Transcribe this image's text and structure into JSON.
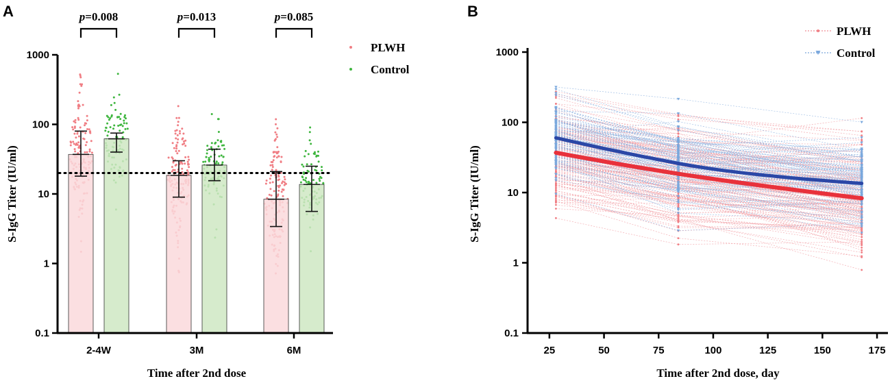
{
  "chart_data": [
    {
      "panel": "A",
      "type": "bar",
      "xlabel": "Time after 2nd dose",
      "ylabel": "S-IgG Titer (IU/ml)",
      "yscale": "log",
      "ylim": [
        0.1,
        1000
      ],
      "yticks": [
        "0.1",
        "1",
        "10",
        "100",
        "1000"
      ],
      "categories": [
        "2-4W",
        "3M",
        "6M"
      ],
      "reference_line": 20,
      "series": [
        {
          "name": "PLWH",
          "color": "#f07e84",
          "fill": "#fad9dc",
          "values": [
            37,
            18.5,
            8.4
          ],
          "error_low": [
            18,
            9,
            3.4
          ],
          "error_high": [
            80,
            30,
            21
          ]
        },
        {
          "name": "Control",
          "color": "#3fb63f",
          "fill": "#cfe8c3",
          "values": [
            62,
            26,
            13.7
          ],
          "error_low": [
            40,
            15.5,
            5.6
          ],
          "error_high": [
            75,
            44,
            25
          ]
        }
      ],
      "pvalues": [
        "=0.008",
        "=0.013",
        "=0.085"
      ],
      "p_prefix": "p",
      "legend": [
        "PLWH",
        "Control"
      ]
    },
    {
      "panel": "B",
      "type": "line",
      "xlabel": "Time after 2nd dose, day",
      "ylabel": "S-IgG Titer (IU/ml)",
      "yscale": "log",
      "ylim": [
        0.1,
        1000
      ],
      "xlim": [
        15,
        180
      ],
      "xticks": [
        "25",
        "50",
        "75",
        "100",
        "125",
        "150",
        "175"
      ],
      "yticks": [
        "0.1",
        "1",
        "10",
        "100",
        "1000"
      ],
      "x": [
        28,
        84,
        168
      ],
      "series": [
        {
          "name": "PLWH",
          "color": "#e8313b",
          "values": [
            37,
            18.5,
            8.3
          ]
        },
        {
          "name": "Control",
          "color": "#2b47a6",
          "values": [
            60,
            26,
            13.5
          ]
        }
      ],
      "legend": [
        "PLWH",
        "Control"
      ]
    }
  ]
}
